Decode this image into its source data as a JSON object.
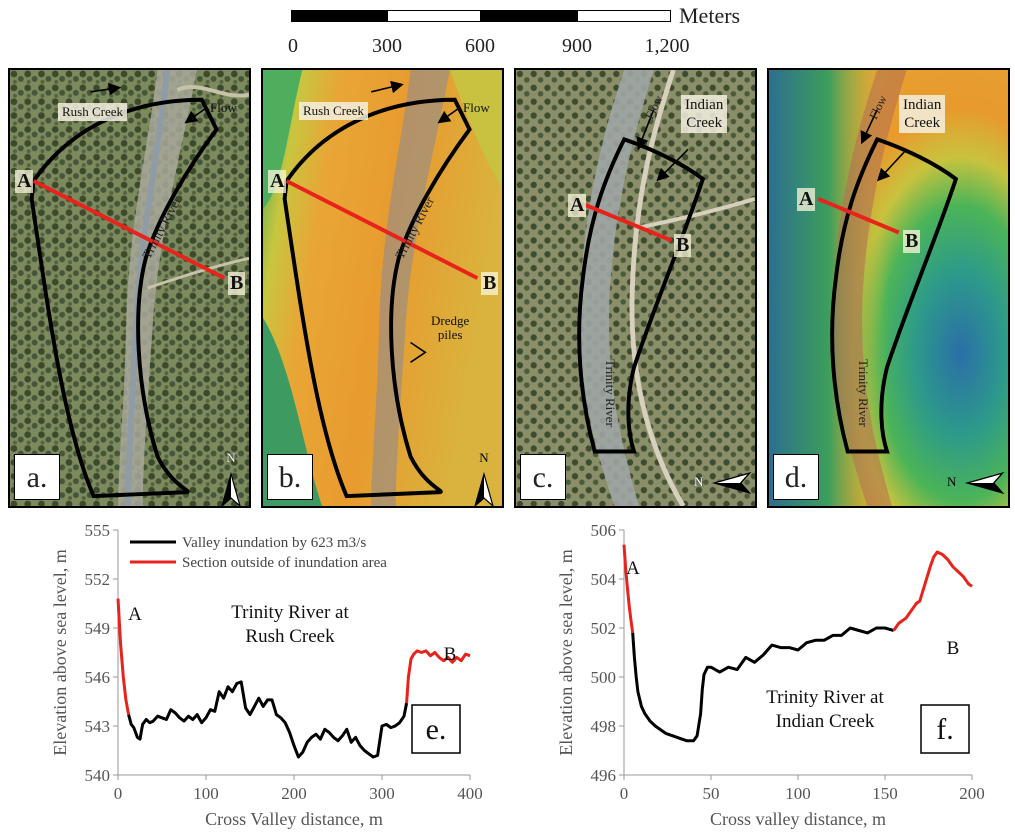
{
  "scale_bar": {
    "unit": "Meters",
    "ticks": [
      "0",
      "300",
      "600",
      "900",
      "1,200"
    ]
  },
  "panels": [
    {
      "letter": "a.",
      "rush_creek": "Rush Creek",
      "flow": "Flow",
      "river": "Trinity River",
      "point_a": "A",
      "point_b": "B",
      "north": "N"
    },
    {
      "letter": "b.",
      "rush_creek": "Rush Creek",
      "flow": "Flow",
      "river": "Trinity River",
      "point_a": "A",
      "point_b": "B",
      "dredge": "Dredge\npiles",
      "north": "N"
    },
    {
      "letter": "c.",
      "indian_creek": "Indian\nCreek",
      "flow": "Flow",
      "river": "Trinity River",
      "point_a": "A",
      "point_b": "B",
      "north": "N"
    },
    {
      "letter": "d.",
      "indian_creek": "Indian\nCreek",
      "flow": "Flow",
      "river": "Trinity River",
      "point_a": "A",
      "point_b": "B",
      "north": "N"
    }
  ],
  "legend": {
    "inundation": "Valley inundation by 623 m3/s",
    "outside": "Section outside of inundation area"
  },
  "colors": {
    "inundation": "#000000",
    "outside": "#e8231c",
    "section_line": "#e8231c"
  },
  "chart_data": [
    {
      "type": "line",
      "panel_letter": "e.",
      "title_line1": "Trinity River at",
      "title_line2": "Rush Creek",
      "xlabel": "Cross Valley distance, m",
      "ylabel": "Elevation above sea level, m",
      "xlim": [
        0,
        400
      ],
      "ylim": [
        540,
        555
      ],
      "xticks": [
        "0",
        "100",
        "200",
        "300",
        "400"
      ],
      "yticks": [
        "540",
        "543",
        "546",
        "549",
        "552",
        "555"
      ],
      "label_a": "A",
      "label_b": "B",
      "series": [
        {
          "name": "Section outside of inundation area",
          "color": "#e8231c",
          "x": [
            0,
            3,
            6,
            9,
            12
          ],
          "y": [
            550.8,
            548.0,
            546.0,
            544.6,
            543.7
          ]
        },
        {
          "name": "Valley inundation by 623 m3/s",
          "color": "#000000",
          "x": [
            12,
            15,
            18,
            22,
            25,
            28,
            32,
            36,
            40,
            45,
            50,
            55,
            60,
            65,
            70,
            75,
            80,
            85,
            90,
            95,
            100,
            105,
            110,
            115,
            120,
            125,
            130,
            135,
            140,
            145,
            150,
            155,
            160,
            165,
            170,
            175,
            180,
            185,
            190,
            195,
            200,
            205,
            210,
            215,
            220,
            225,
            230,
            235,
            240,
            245,
            250,
            255,
            260,
            265,
            270,
            275,
            280,
            285,
            290,
            295,
            300,
            305,
            310,
            315,
            320,
            325,
            328
          ],
          "y": [
            543.7,
            543.1,
            542.9,
            542.3,
            542.2,
            543.1,
            543.4,
            543.2,
            543.3,
            543.6,
            543.5,
            543.4,
            544.0,
            543.8,
            543.5,
            543.3,
            543.6,
            543.4,
            543.7,
            543.2,
            543.5,
            544.0,
            543.9,
            545.1,
            544.7,
            545.4,
            545.1,
            545.6,
            545.7,
            544.1,
            543.7,
            544.2,
            544.7,
            544.2,
            544.6,
            544.6,
            543.7,
            543.5,
            543.2,
            542.6,
            541.8,
            541.1,
            541.4,
            542.0,
            542.3,
            542.5,
            542.2,
            542.8,
            542.6,
            542.3,
            542.1,
            542.4,
            542.8,
            542.0,
            542.3,
            541.8,
            541.5,
            541.3,
            541.1,
            541.2,
            543.0,
            543.1,
            542.9,
            543.0,
            543.2,
            543.6,
            544.4
          ]
        },
        {
          "name": "Section outside of inundation area",
          "color": "#e8231c",
          "x": [
            328,
            330,
            333,
            336,
            340,
            345,
            350,
            355,
            360,
            365,
            370,
            375,
            380,
            385,
            390,
            395,
            400
          ],
          "y": [
            544.4,
            546.0,
            547.1,
            547.4,
            547.6,
            547.5,
            547.6,
            547.3,
            547.5,
            547.2,
            547.0,
            547.2,
            546.9,
            547.2,
            547.0,
            547.4,
            547.3
          ]
        }
      ]
    },
    {
      "type": "line",
      "panel_letter": "f.",
      "title_line1": "Trinity River at",
      "title_line2": "Indian Creek",
      "xlabel": "Cross valley distance, m",
      "ylabel": "Elevation above sea level, m",
      "xlim": [
        0,
        200
      ],
      "ylim": [
        496,
        506
      ],
      "xticks": [
        "0",
        "50",
        "100",
        "150",
        "200"
      ],
      "yticks": [
        "496",
        "498",
        "500",
        "502",
        "504",
        "506"
      ],
      "label_a": "A",
      "label_b": "B",
      "series": [
        {
          "name": "Section outside of inundation area",
          "color": "#e8231c",
          "x": [
            0,
            1,
            2,
            3,
            4,
            5
          ],
          "y": [
            505.4,
            504.4,
            503.6,
            502.9,
            502.3,
            501.8
          ]
        },
        {
          "name": "Valley inundation by 623 m3/s",
          "color": "#000000",
          "x": [
            5,
            6,
            7,
            8,
            10,
            12,
            15,
            18,
            20,
            24,
            28,
            32,
            36,
            40,
            42,
            44,
            45,
            46,
            48,
            50,
            55,
            60,
            65,
            70,
            75,
            80,
            85,
            90,
            95,
            100,
            105,
            110,
            115,
            120,
            125,
            130,
            135,
            140,
            145,
            150,
            155
          ],
          "y": [
            501.8,
            500.8,
            500.0,
            499.4,
            498.8,
            498.5,
            498.2,
            498.0,
            497.9,
            497.7,
            497.6,
            497.5,
            497.4,
            497.4,
            497.6,
            498.5,
            499.5,
            500.1,
            500.4,
            500.4,
            500.2,
            500.4,
            500.3,
            500.8,
            500.6,
            500.9,
            501.3,
            501.2,
            501.2,
            501.1,
            501.4,
            501.5,
            501.5,
            501.7,
            501.7,
            502.0,
            501.9,
            501.8,
            502.0,
            502.0,
            501.9
          ]
        },
        {
          "name": "Section outside of inundation area",
          "color": "#e8231c",
          "x": [
            155,
            158,
            162,
            165,
            168,
            170,
            173,
            176,
            178,
            180,
            183,
            186,
            189,
            192,
            195,
            198,
            200
          ],
          "y": [
            501.9,
            502.2,
            502.4,
            502.7,
            503.0,
            503.1,
            503.8,
            504.5,
            504.9,
            505.1,
            505.0,
            504.8,
            504.5,
            504.3,
            504.1,
            503.8,
            503.7
          ]
        }
      ]
    }
  ]
}
